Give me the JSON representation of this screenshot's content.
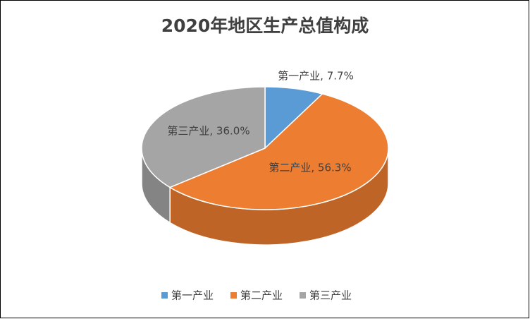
{
  "chart_data": {
    "type": "pie3d",
    "title": "2020年地区生产总值构成",
    "categories": [
      "第一产业",
      "第二产业",
      "第三产业"
    ],
    "values": [
      7.7,
      56.3,
      36.0
    ],
    "value_labels": [
      "第一产业, 7.7%",
      "第二产业, 56.3%",
      "第三产业, 36.0%"
    ],
    "colors": [
      "#5b9bd5",
      "#ed7d31",
      "#a5a5a5"
    ]
  }
}
